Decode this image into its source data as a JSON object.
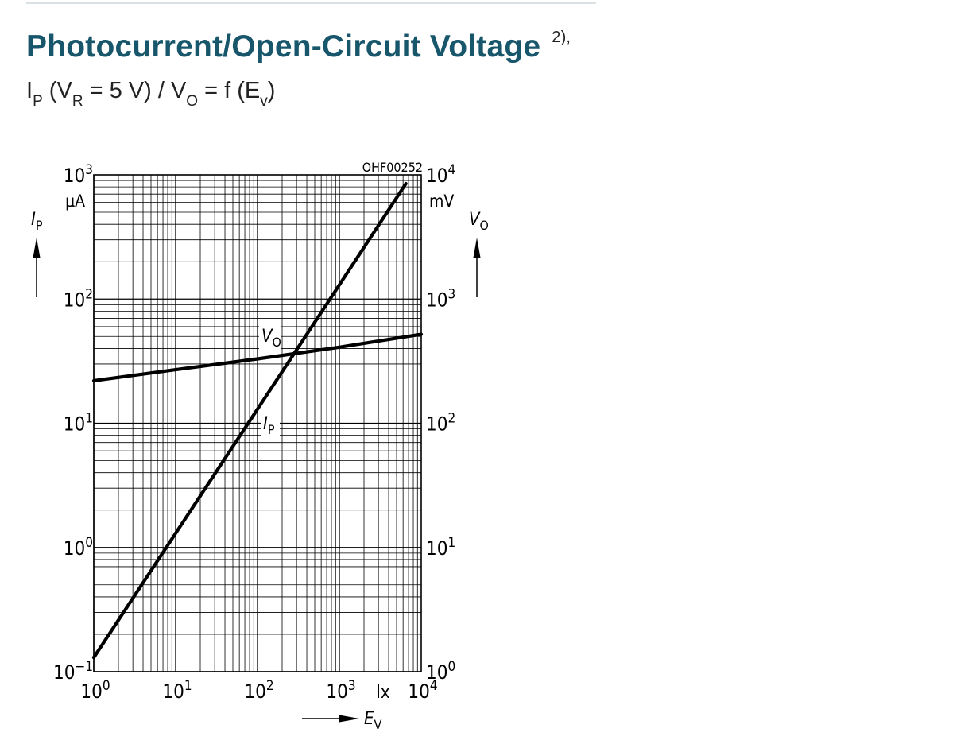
{
  "header": {
    "title": "Photocurrent/Open-Circuit Voltage",
    "footnote": "2),",
    "subtitle": {
      "p1": "I",
      "s1": "P",
      "p2": " (V",
      "s2": "R",
      "p3": " = 5 V) / V",
      "s3": "O",
      "p4": " = f (E",
      "s4": "v",
      "p5": ")"
    }
  },
  "chart_data": {
    "type": "line",
    "code": "OHF00252",
    "x_scale": "log",
    "x_range": [
      1,
      10000
    ],
    "x_ticks": [
      {
        "value": 1,
        "base": "10",
        "exp": "0"
      },
      {
        "value": 10,
        "base": "10",
        "exp": "1"
      },
      {
        "value": 100,
        "base": "10",
        "exp": "2"
      },
      {
        "value": 1000,
        "base": "10",
        "exp": "3"
      },
      {
        "value": 10000,
        "base": "10",
        "exp": "4"
      }
    ],
    "x_unit": "lx",
    "x_label": {
      "main": "E",
      "sub": "V"
    },
    "y_left": {
      "scale": "log",
      "range": [
        0.1,
        1000
      ],
      "ticks": [
        {
          "value": 0.1,
          "base": "10",
          "exp": "−1"
        },
        {
          "value": 1,
          "base": "10",
          "exp": "0"
        },
        {
          "value": 10,
          "base": "10",
          "exp": "1"
        },
        {
          "value": 100,
          "base": "10",
          "exp": "2"
        },
        {
          "value": 1000,
          "base": "10",
          "exp": "3"
        }
      ],
      "unit": "µA",
      "label": {
        "main": "I",
        "sub": "P"
      }
    },
    "y_right": {
      "scale": "log",
      "range": [
        1,
        10000
      ],
      "ticks": [
        {
          "value": 1,
          "base": "10",
          "exp": "0"
        },
        {
          "value": 10,
          "base": "10",
          "exp": "1"
        },
        {
          "value": 100,
          "base": "10",
          "exp": "2"
        },
        {
          "value": 1000,
          "base": "10",
          "exp": "3"
        },
        {
          "value": 10000,
          "base": "10",
          "exp": "4"
        }
      ],
      "unit": "mV",
      "label": {
        "main": "V",
        "sub": "O"
      }
    },
    "grid": true,
    "series": [
      {
        "name": "IP",
        "label": {
          "main": "I",
          "sub": "P"
        },
        "axis": "left",
        "x": [
          1,
          10,
          100,
          1000,
          6500
        ],
        "y": [
          0.13,
          1.3,
          13,
          130,
          850
        ]
      },
      {
        "name": "VO",
        "label": {
          "main": "V",
          "sub": "O"
        },
        "axis": "right",
        "x": [
          1,
          10,
          100,
          1000,
          10000
        ],
        "y": [
          220,
          270,
          330,
          410,
          520
        ]
      }
    ]
  }
}
